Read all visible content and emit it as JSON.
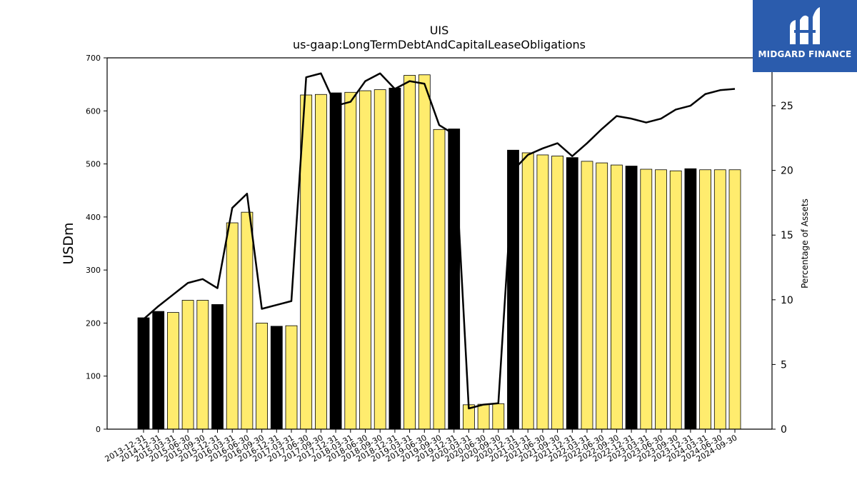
{
  "colors": {
    "accent": "#ffec6e",
    "highlight": "#000000",
    "line": "#000000",
    "logo_bg": "#2b5cad"
  },
  "logo": {
    "text": "MIDGARD FINANCE"
  },
  "chart_data": {
    "type": "bar",
    "title": "UIS",
    "subtitle": "us-gaap:LongTermDebtAndCapitalLeaseObligations",
    "ylabel": "USDm",
    "y2label": "Percentage of Assets",
    "ylim": [
      0,
      700
    ],
    "y2lim": [
      0,
      28.7
    ],
    "yticks": [
      0,
      100,
      200,
      300,
      400,
      500,
      600,
      700
    ],
    "y2ticks": [
      0,
      5,
      10,
      15,
      20,
      25
    ],
    "categories": [
      "2013-12-31",
      "2014-12-31",
      "2015-03-31",
      "2015-06-30",
      "2015-09-30",
      "2015-12-31",
      "2016-03-31",
      "2016-06-30",
      "2016-09-30",
      "2016-12-31",
      "2017-03-31",
      "2017-06-30",
      "2017-09-30",
      "2017-12-31",
      "2018-03-31",
      "2018-06-30",
      "2018-09-30",
      "2018-12-31",
      "2019-03-31",
      "2019-06-30",
      "2019-09-30",
      "2019-12-31",
      "2020-03-31",
      "2020-06-30",
      "2020-09-30",
      "2020-12-31",
      "2021-03-31",
      "2021-06-30",
      "2021-09-30",
      "2021-12-31",
      "2022-03-31",
      "2022-06-30",
      "2022-09-30",
      "2022-12-31",
      "2023-03-31",
      "2023-06-30",
      "2023-09-30",
      "2023-12-31",
      "2024-03-31",
      "2024-06-30",
      "2024-09-30"
    ],
    "series": [
      {
        "type": "bar",
        "axis": "left",
        "values": [
          210,
          222,
          220,
          243,
          243,
          235,
          389,
          409,
          200,
          194,
          195,
          630,
          631,
          634,
          635,
          638,
          640,
          643,
          667,
          668,
          565,
          566,
          46,
          47,
          48,
          526,
          521,
          517,
          515,
          512,
          505,
          502,
          498,
          496,
          490,
          489,
          487,
          491,
          489,
          489,
          489
        ],
        "highlight": [
          true,
          true,
          false,
          false,
          false,
          true,
          false,
          false,
          false,
          true,
          false,
          false,
          false,
          true,
          false,
          false,
          false,
          true,
          false,
          false,
          false,
          true,
          false,
          false,
          false,
          true,
          false,
          false,
          false,
          true,
          false,
          false,
          false,
          true,
          false,
          false,
          false,
          true,
          false,
          false,
          false
        ]
      },
      {
        "type": "line",
        "axis": "right",
        "values": [
          8.5,
          9.5,
          10.4,
          11.3,
          11.6,
          10.9,
          17.1,
          18.2,
          9.3,
          9.6,
          9.9,
          27.2,
          27.5,
          25.0,
          25.3,
          26.9,
          27.5,
          26.3,
          26.9,
          26.7,
          23.5,
          22.8,
          1.6,
          1.9,
          2.0,
          20.0,
          21.2,
          21.7,
          22.1,
          21.1,
          22.1,
          23.2,
          24.2,
          24.0,
          23.7,
          24.0,
          24.7,
          25.0,
          25.9,
          26.2,
          26.3
        ]
      }
    ],
    "grid": false,
    "legend": "none"
  }
}
